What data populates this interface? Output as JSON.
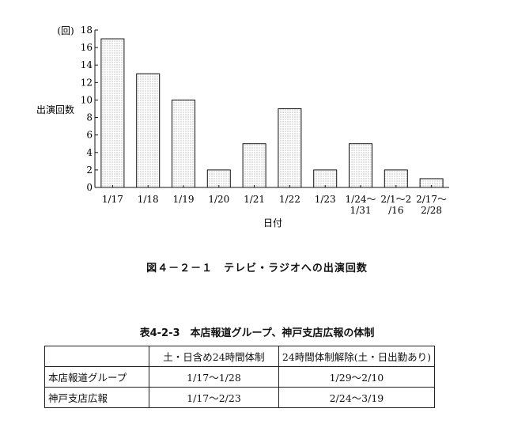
{
  "chart_data": {
    "type": "bar",
    "yunit": "(回)",
    "ylabel": "出演回数",
    "xlabel": "日付",
    "ylim": [
      0,
      18
    ],
    "yticks": [
      0,
      2,
      4,
      6,
      8,
      10,
      12,
      14,
      16,
      18
    ],
    "categories": [
      [
        "1/17"
      ],
      [
        "1/18"
      ],
      [
        "1/19"
      ],
      [
        "1/20"
      ],
      [
        "1/21"
      ],
      [
        "1/22"
      ],
      [
        "1/23"
      ],
      [
        "1/24～",
        "1/31"
      ],
      [
        "2/1～2",
        "/16"
      ],
      [
        "2/17～",
        "2/28"
      ]
    ],
    "values": [
      17,
      13,
      10,
      2,
      5,
      9,
      2,
      5,
      2,
      1
    ],
    "grid": false,
    "bar_fill": "dotted"
  },
  "figure_caption": "図４－２－１　テレビ・ラジオへの出演回数",
  "table": {
    "title": "表4-2-3　本店報道グループ、神戸支店広報の体制",
    "headers": [
      "",
      "土・日含め24時間体制",
      "24時間体制解除(土・日出勤あり)"
    ],
    "rows": [
      [
        "本店報道グループ",
        "1/17～1/28",
        "1/29～2/10"
      ],
      [
        "神戸支店広報",
        "1/17～2/23",
        "2/24～3/19"
      ]
    ]
  }
}
